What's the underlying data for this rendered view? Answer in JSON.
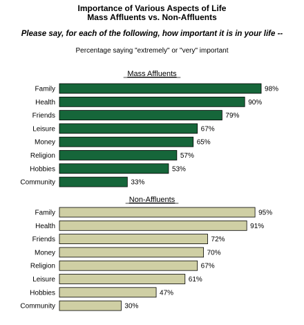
{
  "header": {
    "title_line1": "Importance of Various Aspects of Life",
    "title_line2": "Mass Affluents vs. Non-Affluents",
    "question": "Please say, for each of the following, how important it is in your life --",
    "note": "Percentage saying \"extremely\" or \"very\" important"
  },
  "colors": {
    "mass_affluents": "#16663a",
    "non_affluents": "#cfcfa4",
    "bar_stroke": "#000000"
  },
  "chart_data": [
    {
      "type": "bar",
      "orientation": "horizontal",
      "title": "Mass Affluents",
      "categories": [
        "Family",
        "Health",
        "Friends",
        "Leisure",
        "Money",
        "Religion",
        "Hobbies",
        "Community"
      ],
      "values": [
        98,
        90,
        79,
        67,
        65,
        57,
        53,
        33
      ],
      "value_suffix": "%",
      "xlim": [
        0,
        100
      ]
    },
    {
      "type": "bar",
      "orientation": "horizontal",
      "title": "Non-Affluents",
      "categories": [
        "Family",
        "Health",
        "Friends",
        "Money",
        "Religion",
        "Leisure",
        "Hobbies",
        "Community"
      ],
      "values": [
        95,
        91,
        72,
        70,
        67,
        61,
        47,
        30
      ],
      "value_suffix": "%",
      "xlim": [
        0,
        100
      ]
    }
  ]
}
